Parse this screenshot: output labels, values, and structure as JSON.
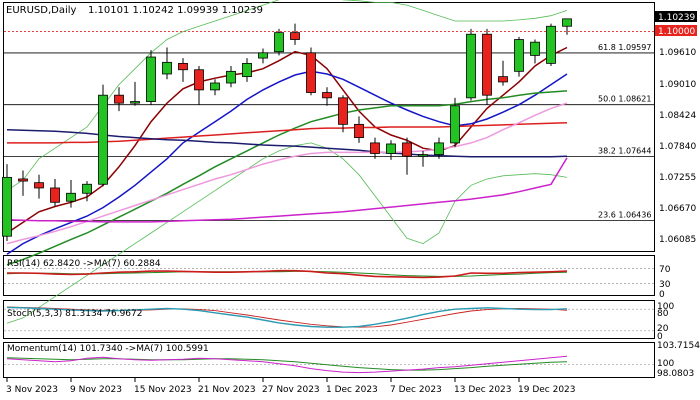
{
  "header": {
    "symbol": "EURUSD,Daily",
    "ohlc": "1.10101 1.10242 1.09939 1.10239"
  },
  "price_axis": {
    "current_price": "1.10239",
    "reference_price": "1.10000",
    "current_price_color": "#000000",
    "reference_price_color": "#e8231e"
  },
  "panels": {
    "rsi": {
      "label": "RSI(14) 62.8420 ->MA(7) 60.2884",
      "ticks": [
        "70",
        "30",
        "0"
      ]
    },
    "stoch": {
      "label": "Stoch(5,3,3) 81.3134 76.9672",
      "ticks": [
        "100",
        "80",
        "20",
        "0"
      ]
    },
    "momentum": {
      "label": "Momentum(14) 101.7340 ->MA(7) 100.5991",
      "ticks": [
        "103.7154",
        "100",
        "98.0803"
      ]
    }
  },
  "colors": {
    "bull": "#22c322",
    "bear": "#e8231e",
    "ma_darkred": "#8b0000",
    "ma_blue": "#1515c8",
    "ma_green": "#238b23",
    "ma_red": "#dd1f1f",
    "ma_navy": "#1c1c6e",
    "ma_pink": "#ee99dd",
    "ma_magenta": "#cc22cc",
    "bollinger": "#55bb55"
  },
  "chart_data": {
    "type": "candlestick",
    "x_dates": [
      "3 Nov 2023",
      "9 Nov 2023",
      "15 Nov 2023",
      "21 Nov 2023",
      "27 Nov 2023",
      "1 Dec 2023",
      "7 Dec 2023",
      "13 Dec 2023",
      "19 Dec 2023"
    ],
    "y_ticks": [
      "1.09610",
      "1.09010",
      "1.08424",
      "1.07840",
      "1.07255",
      "1.06670",
      "1.06085"
    ],
    "ylim": [
      1.0588,
      1.1052
    ],
    "fib_levels": [
      {
        "label": "61.8 1.09597",
        "value": 1.09597
      },
      {
        "label": "50.0 1.08621",
        "value": 1.08621
      },
      {
        "label": "38.2 1.07644",
        "value": 1.07644
      },
      {
        "label": "23.6 1.06436",
        "value": 1.06436
      }
    ],
    "reference_level": 1.1,
    "candles": [
      {
        "o": 1.0614,
        "h": 1.075,
        "l": 1.0605,
        "c": 1.0725
      },
      {
        "o": 1.0722,
        "h": 1.0738,
        "l": 1.069,
        "c": 1.0718
      },
      {
        "o": 1.0715,
        "h": 1.073,
        "l": 1.0685,
        "c": 1.0705
      },
      {
        "o": 1.0705,
        "h": 1.0722,
        "l": 1.067,
        "c": 1.0678
      },
      {
        "o": 1.068,
        "h": 1.072,
        "l": 1.0668,
        "c": 1.0695
      },
      {
        "o": 1.0695,
        "h": 1.0718,
        "l": 1.068,
        "c": 1.0712
      },
      {
        "o": 1.0712,
        "h": 1.09,
        "l": 1.0708,
        "c": 1.088
      },
      {
        "o": 1.088,
        "h": 1.0895,
        "l": 1.085,
        "c": 1.0865
      },
      {
        "o": 1.0865,
        "h": 1.0905,
        "l": 1.086,
        "c": 1.0868
      },
      {
        "o": 1.0868,
        "h": 1.0965,
        "l": 1.0862,
        "c": 1.0952
      },
      {
        "o": 1.092,
        "h": 1.097,
        "l": 1.091,
        "c": 1.0942
      },
      {
        "o": 1.094,
        "h": 1.095,
        "l": 1.0905,
        "c": 1.0928
      },
      {
        "o": 1.0928,
        "h": 1.0935,
        "l": 1.0862,
        "c": 1.089
      },
      {
        "o": 1.089,
        "h": 1.091,
        "l": 1.088,
        "c": 1.0903
      },
      {
        "o": 1.0903,
        "h": 1.0935,
        "l": 1.0895,
        "c": 1.0925
      },
      {
        "o": 1.0915,
        "h": 1.095,
        "l": 1.0905,
        "c": 1.094
      },
      {
        "o": 1.095,
        "h": 1.0968,
        "l": 1.094,
        "c": 1.096
      },
      {
        "o": 1.0962,
        "h": 1.1005,
        "l": 1.0955,
        "c": 1.0998
      },
      {
        "o": 1.0998,
        "h": 1.1015,
        "l": 1.0975,
        "c": 1.0985
      },
      {
        "o": 1.096,
        "h": 1.097,
        "l": 1.088,
        "c": 1.0885
      },
      {
        "o": 1.0885,
        "h": 1.0895,
        "l": 1.086,
        "c": 1.0875
      },
      {
        "o": 1.0875,
        "h": 1.088,
        "l": 1.081,
        "c": 1.0825
      },
      {
        "o": 1.0825,
        "h": 1.084,
        "l": 1.079,
        "c": 1.08
      },
      {
        "o": 1.079,
        "h": 1.08,
        "l": 1.076,
        "c": 1.077
      },
      {
        "o": 1.077,
        "h": 1.0795,
        "l": 1.0758,
        "c": 1.0788
      },
      {
        "o": 1.079,
        "h": 1.08,
        "l": 1.073,
        "c": 1.0765
      },
      {
        "o": 1.0765,
        "h": 1.0775,
        "l": 1.0745,
        "c": 1.0768
      },
      {
        "o": 1.0768,
        "h": 1.08,
        "l": 1.076,
        "c": 1.079
      },
      {
        "o": 1.079,
        "h": 1.0875,
        "l": 1.0782,
        "c": 1.086
      },
      {
        "o": 1.0875,
        "h": 1.1005,
        "l": 1.087,
        "c": 1.0995
      },
      {
        "o": 1.0995,
        "h": 1.1005,
        "l": 1.0862,
        "c": 1.088
      },
      {
        "o": 1.0915,
        "h": 1.0945,
        "l": 1.0898,
        "c": 1.0905
      },
      {
        "o": 1.0925,
        "h": 1.099,
        "l": 1.0915,
        "c": 1.0985
      },
      {
        "o": 1.0955,
        "h": 1.0985,
        "l": 1.094,
        "c": 1.098
      },
      {
        "o": 1.094,
        "h": 1.1015,
        "l": 1.0935,
        "c": 1.101
      },
      {
        "o": 1.101,
        "h": 1.1024,
        "l": 1.0994,
        "c": 1.1024
      }
    ],
    "moving_averages": [
      {
        "color": "#8b0000",
        "values": [
          1.062,
          1.064,
          1.066,
          1.067,
          1.0678,
          1.0688,
          1.071,
          1.0745,
          1.0785,
          1.083,
          1.0865,
          1.0892,
          1.0905,
          1.0912,
          1.0918,
          1.0922,
          1.093,
          1.0945,
          1.0962,
          1.0955,
          1.093,
          1.089,
          1.085,
          1.082,
          1.0805,
          1.0795,
          1.078,
          1.0775,
          1.0785,
          1.082,
          1.0855,
          1.088,
          1.0905,
          1.0935,
          1.0955,
          1.097
        ]
      },
      {
        "color": "#1515c8",
        "values": [
          1.058,
          1.06,
          1.0615,
          1.0628,
          1.064,
          1.0652,
          1.0668,
          1.0688,
          1.071,
          1.0735,
          1.076,
          1.079,
          1.081,
          1.083,
          1.085,
          1.0872,
          1.089,
          1.0905,
          1.0918,
          1.0925,
          1.092,
          1.091,
          1.0895,
          1.088,
          1.0865,
          1.0852,
          1.084,
          1.083,
          1.0822,
          1.0826,
          1.0835,
          1.0848,
          1.0862,
          1.088,
          1.09,
          1.092
        ]
      },
      {
        "color": "#238b23",
        "values": [
          1.056,
          1.057,
          1.0582,
          1.0595,
          1.0608,
          1.062,
          1.0635,
          1.065,
          1.0665,
          1.068,
          1.0695,
          1.0712,
          1.0728,
          1.0745,
          1.076,
          1.0775,
          1.079,
          1.0805,
          1.0818,
          1.083,
          1.0838,
          1.0846,
          1.0852,
          1.0856,
          1.086,
          1.086,
          1.086,
          1.086,
          1.0863,
          1.0868,
          1.0872,
          1.0875,
          1.088,
          1.0884,
          1.0886,
          1.0888
        ]
      },
      {
        "color": "#dd1f1f",
        "values": [
          1.079,
          1.079,
          1.079,
          1.079,
          1.0791,
          1.0791,
          1.0792,
          1.0793,
          1.0795,
          1.0797,
          1.0799,
          1.0801,
          1.0803,
          1.0805,
          1.0807,
          1.0809,
          1.0811,
          1.0813,
          1.0815,
          1.0817,
          1.0818,
          1.0818,
          1.0819,
          1.0819,
          1.082,
          1.082,
          1.082,
          1.082,
          1.0821,
          1.0822,
          1.0823,
          1.0824,
          1.0825,
          1.0826,
          1.0827,
          1.0828
        ]
      },
      {
        "color": "#1c1c6e",
        "values": [
          1.0815,
          1.0814,
          1.0813,
          1.0812,
          1.081,
          1.0808,
          1.0805,
          1.0802,
          1.08,
          1.0798,
          1.0796,
          1.0795,
          1.0793,
          1.0791,
          1.079,
          1.0788,
          1.0786,
          1.0785,
          1.0784,
          1.0782,
          1.078,
          1.0778,
          1.0776,
          1.0773,
          1.0771,
          1.0769,
          1.0767,
          1.0766,
          1.0765,
          1.0764,
          1.0764,
          1.0764,
          1.0764,
          1.0764,
          1.0764,
          1.0765
        ]
      },
      {
        "color": "#ee99dd",
        "values": [
          1.06,
          1.0608,
          1.0615,
          1.0623,
          1.0632,
          1.0642,
          1.0652,
          1.0662,
          1.0672,
          1.0682,
          1.0692,
          1.0702,
          1.0712,
          1.0722,
          1.073,
          1.074,
          1.075,
          1.0758,
          1.0765,
          1.077,
          1.0772,
          1.0772,
          1.0772,
          1.0772,
          1.0772,
          1.0773,
          1.0775,
          1.0778,
          1.0783,
          1.079,
          1.08,
          1.0815,
          1.0828,
          1.0842,
          1.0855,
          1.0865
        ]
      },
      {
        "color": "#cc22cc",
        "values": [
          1.0645,
          1.0644,
          1.0643,
          1.0643,
          1.0642,
          1.0642,
          1.0641,
          1.0641,
          1.0641,
          1.0641,
          1.0642,
          1.0643,
          1.0644,
          1.0645,
          1.0646,
          1.0648,
          1.065,
          1.0652,
          1.0654,
          1.0656,
          1.0658,
          1.066,
          1.0663,
          1.0666,
          1.0669,
          1.0672,
          1.0675,
          1.0678,
          1.0681,
          1.0684,
          1.0688,
          1.0692,
          1.0698,
          1.0705,
          1.0712,
          1.0762
        ]
      }
    ],
    "bollinger_upper": [
      1.07,
      1.072,
      1.076,
      1.078,
      1.08,
      1.082,
      1.086,
      1.09,
      1.093,
      1.096,
      1.0985,
      1.1,
      1.101,
      1.102,
      1.103,
      1.104,
      1.105,
      1.106,
      1.1068,
      1.107,
      1.1065,
      1.106,
      1.1058,
      1.1055,
      1.1055,
      1.105,
      1.104,
      1.103,
      1.102,
      1.102,
      1.102,
      1.102,
      1.1022,
      1.1025,
      1.103,
      1.104
    ],
    "bollinger_lower": [
      1.045,
      1.046,
      1.048,
      1.05,
      1.052,
      1.054,
      1.056,
      1.058,
      1.06,
      1.062,
      1.064,
      1.066,
      1.068,
      1.07,
      1.072,
      1.074,
      1.076,
      1.0775,
      1.0785,
      1.079,
      1.078,
      1.076,
      1.073,
      1.069,
      1.065,
      1.061,
      1.06,
      1.062,
      1.068,
      1.071,
      1.0722,
      1.0728,
      1.073,
      1.0732,
      1.073,
      1.0725
    ],
    "rsi": {
      "ylim": [
        0,
        100
      ],
      "rsi": [
        58,
        58,
        57,
        55,
        54,
        55,
        58,
        60,
        61,
        63,
        63,
        62,
        61,
        60,
        60,
        61,
        62,
        64,
        64,
        62,
        58,
        56,
        52,
        49,
        48,
        47,
        46,
        47,
        50,
        58,
        57,
        57,
        59,
        60,
        61,
        63
      ],
      "ma": [
        56,
        57,
        57,
        57,
        56,
        56,
        56,
        57,
        58,
        59,
        60,
        61,
        61,
        61,
        61,
        61,
        61,
        61,
        62,
        62,
        61,
        60,
        58,
        56,
        53,
        51,
        50,
        49,
        49,
        50,
        52,
        54,
        55,
        57,
        59,
        60
      ]
    },
    "stoch": {
      "ylim": [
        0,
        100
      ],
      "k": [
        85,
        84,
        82,
        80,
        78,
        76,
        75,
        76,
        78,
        80,
        82,
        80,
        76,
        70,
        64,
        58,
        50,
        42,
        36,
        32,
        30,
        30,
        32,
        38,
        46,
        55,
        65,
        74,
        80,
        82,
        84,
        82,
        80,
        79,
        79,
        81
      ],
      "d": [
        86,
        85,
        84,
        82,
        80,
        78,
        77,
        76,
        77,
        78,
        80,
        81,
        79,
        76,
        70,
        64,
        57,
        50,
        44,
        38,
        34,
        31,
        30,
        31,
        36,
        44,
        52,
        60,
        68,
        75,
        79,
        81,
        82,
        81,
        80,
        77
      ]
    },
    "momentum": {
      "ylim": [
        97.5,
        104.2
      ],
      "mom": [
        101.2,
        101.0,
        100.8,
        100.6,
        100.8,
        101.3,
        101.5,
        101.2,
        101.0,
        100.9,
        101.0,
        101.1,
        101.3,
        101.2,
        101.0,
        100.8,
        100.6,
        100.2,
        99.8,
        99.2,
        98.8,
        98.5,
        98.4,
        98.5,
        98.7,
        98.9,
        99.1,
        99.4,
        99.6,
        99.9,
        100.2,
        100.5,
        100.8,
        101.1,
        101.4,
        101.7
      ],
      "ma": [
        101.4,
        101.3,
        101.2,
        101.1,
        101.0,
        101.1,
        101.2,
        101.2,
        101.1,
        101.0,
        101.0,
        101.0,
        101.1,
        101.2,
        101.2,
        101.1,
        101.0,
        100.8,
        100.6,
        100.3,
        100.0,
        99.7,
        99.4,
        99.2,
        99.0,
        98.9,
        98.9,
        99.0,
        99.2,
        99.4,
        99.7,
        99.9,
        100.1,
        100.3,
        100.5,
        100.6
      ]
    }
  }
}
